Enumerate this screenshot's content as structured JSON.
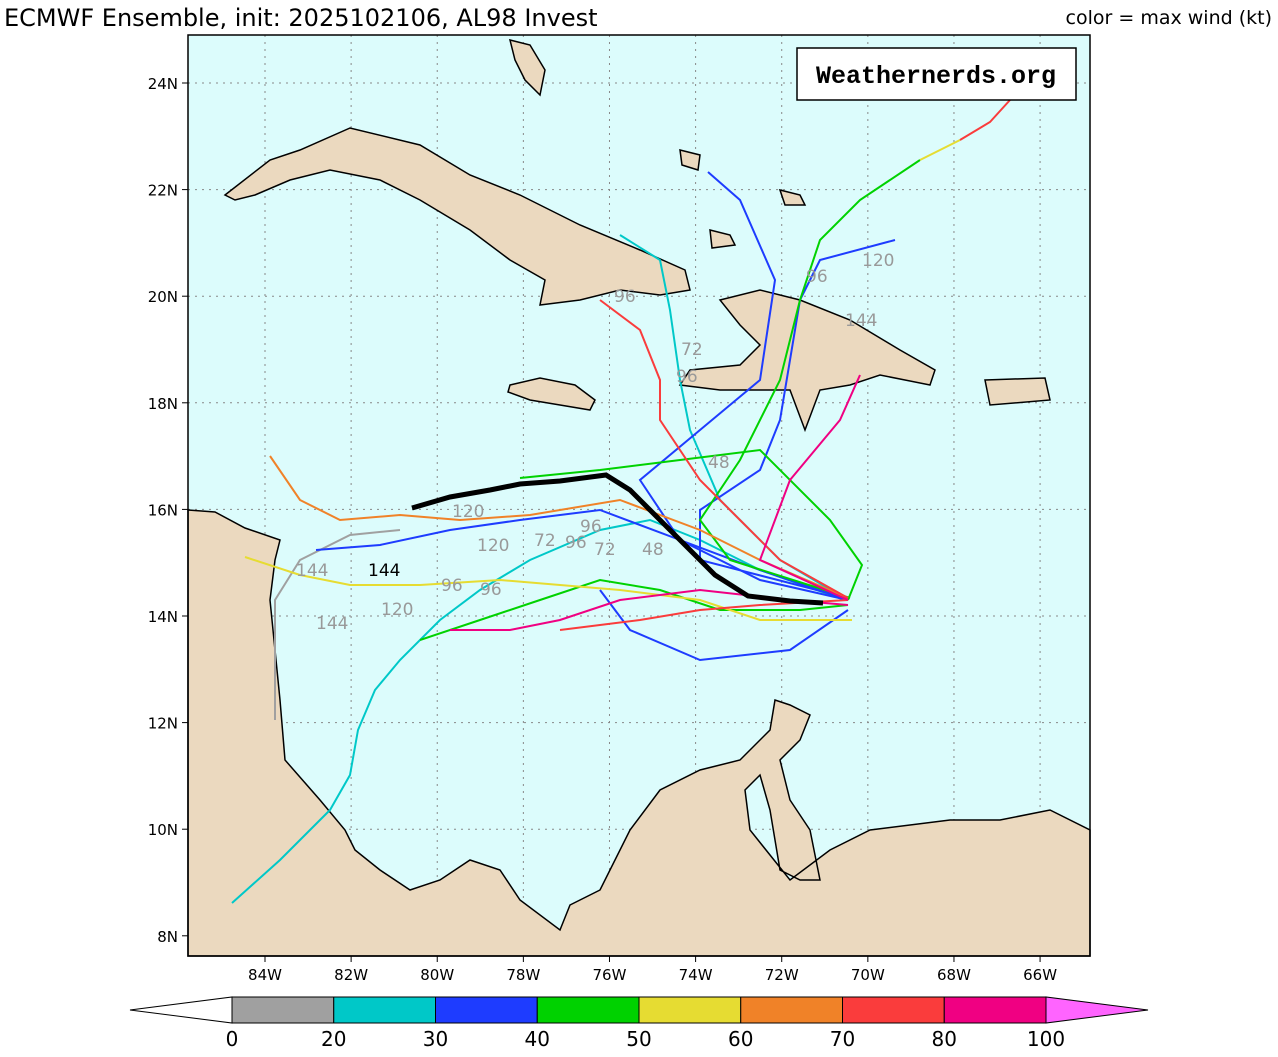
{
  "header": {
    "title": "ECMWF Ensemble, init: 2025102106, AL98 Invest",
    "color_note": "color = max wind (kt)"
  },
  "watermark": "Weathernerds.org",
  "map": {
    "lat_ticks": [
      {
        "value": 24,
        "label": "24N"
      },
      {
        "value": 22,
        "label": "22N"
      },
      {
        "value": 20,
        "label": "20N"
      },
      {
        "value": 18,
        "label": "18N"
      },
      {
        "value": 16,
        "label": "16N"
      },
      {
        "value": 14,
        "label": "14N"
      },
      {
        "value": 12,
        "label": "12N"
      },
      {
        "value": 10,
        "label": "10N"
      },
      {
        "value": 8,
        "label": "8N"
      }
    ],
    "lon_ticks": [
      {
        "value": 84,
        "label": "84W"
      },
      {
        "value": 82,
        "label": "82W"
      },
      {
        "value": 80,
        "label": "80W"
      },
      {
        "value": 78,
        "label": "78W"
      },
      {
        "value": 76,
        "label": "76W"
      },
      {
        "value": 74,
        "label": "74W"
      },
      {
        "value": 72,
        "label": "72W"
      },
      {
        "value": 70,
        "label": "70W"
      },
      {
        "value": 68,
        "label": "68W"
      },
      {
        "value": 66,
        "label": "66W"
      }
    ],
    "track_labels": [
      "96",
      "96",
      "120",
      "144",
      "72",
      "96",
      "120",
      "120",
      "72",
      "72",
      "48",
      "48",
      "144",
      "144",
      "144",
      "120",
      "96",
      "96",
      "96",
      "96"
    ]
  },
  "colorbar": {
    "levels": [
      0,
      20,
      30,
      40,
      50,
      60,
      70,
      80,
      100
    ],
    "colors": [
      "#a0a0a0",
      "#00c8c8",
      "#1e3cff",
      "#00d200",
      "#e6dc32",
      "#f08228",
      "#fa3c3c",
      "#f00082"
    ],
    "under_color": "#ffffff",
    "over_color": "#ff64ff"
  }
}
